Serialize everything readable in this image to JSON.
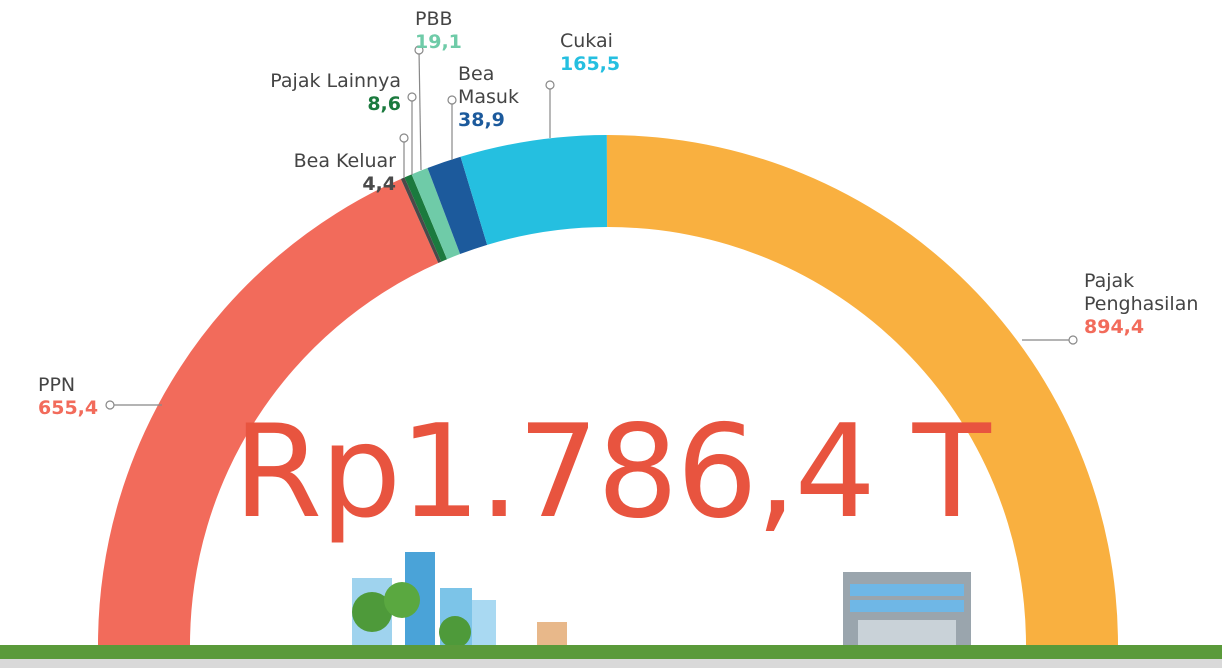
{
  "chart_data": {
    "type": "pie",
    "shape": "half-donut",
    "total_label": "Rp1.786,4 T",
    "categories": [
      "PPN",
      "Bea Keluar",
      "Pajak Lainnya",
      "PBB",
      "Bea Masuk",
      "Cukai",
      "Pajak Penghasilan"
    ],
    "values": [
      655.4,
      4.4,
      8.6,
      19.1,
      38.9,
      165.5,
      894.4
    ],
    "value_labels": [
      "655,4",
      "4,4",
      "8,6",
      "19,1",
      "38,9",
      "165,5",
      "894,4"
    ],
    "colors": [
      "#f26b5b",
      "#4a4a4a",
      "#1b7a3e",
      "#6fcba8",
      "#1c5a9c",
      "#25bfe0",
      "#f9b040"
    ],
    "label_colors": [
      "#f26b5b",
      "#4a4a4a",
      "#1b7a3e",
      "#6fcba8",
      "#1c5a9c",
      "#25bfe0",
      "#f26b5b"
    ]
  }
}
